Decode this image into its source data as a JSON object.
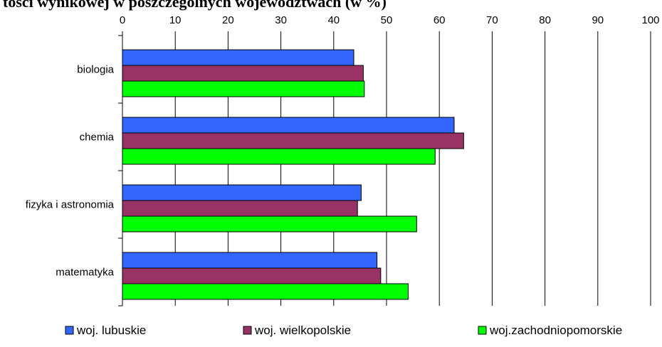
{
  "chart_data": {
    "type": "bar",
    "orientation": "horizontal",
    "title": "tości wynikowej w poszczególnych województwach (w %)",
    "categories": [
      "biologia",
      "chemia",
      "fizyka i astronomia",
      "matematyka"
    ],
    "x_ticks": [
      "0",
      "10",
      "20",
      "30",
      "40",
      "50",
      "60",
      "70",
      "80",
      "90",
      "100"
    ],
    "xlim": [
      0,
      100
    ],
    "x_axis_position": "top",
    "grid": "vertical",
    "legend_position": "bottom",
    "series": [
      {
        "name": "woj. lubuskie",
        "color": "#3366ff",
        "values": [
          43.8,
          62.8,
          45.2,
          48.2
        ]
      },
      {
        "name": "woj. wielkopolskie",
        "color": "#993366",
        "values": [
          45.6,
          64.6,
          44.5,
          48.9
        ]
      },
      {
        "name": "woj.zachodniopomorskie",
        "color": "#00ff00",
        "values": [
          45.8,
          59.2,
          55.7,
          54.1
        ]
      }
    ]
  }
}
